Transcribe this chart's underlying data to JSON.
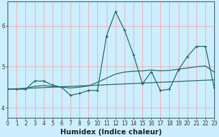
{
  "title": "",
  "xlabel": "Humidex (Indice chaleur)",
  "ylabel": "",
  "bg_color": "#cceeff",
  "grid_color": "#ff9999",
  "line_color": "#1a6b6b",
  "x_data": [
    0,
    1,
    2,
    3,
    4,
    5,
    6,
    7,
    8,
    9,
    10,
    11,
    12,
    13,
    14,
    15,
    16,
    17,
    18,
    19,
    20,
    21,
    22,
    23
  ],
  "y_main": [
    4.45,
    4.45,
    4.45,
    4.65,
    4.65,
    4.55,
    4.5,
    4.3,
    4.35,
    4.42,
    4.42,
    5.75,
    6.35,
    5.9,
    5.3,
    4.58,
    4.88,
    4.42,
    4.45,
    4.92,
    5.25,
    5.5,
    5.5,
    4.48
  ],
  "y_trend1": [
    4.45,
    4.46,
    4.47,
    4.48,
    4.49,
    4.5,
    4.51,
    4.52,
    4.53,
    4.54,
    4.55,
    4.56,
    4.57,
    4.58,
    4.59,
    4.6,
    4.61,
    4.62,
    4.63,
    4.64,
    4.65,
    4.66,
    4.67,
    4.68
  ],
  "y_trend2": [
    4.45,
    4.46,
    4.47,
    4.52,
    4.54,
    4.52,
    4.5,
    4.48,
    4.5,
    4.53,
    4.62,
    4.72,
    4.82,
    4.87,
    4.89,
    4.9,
    4.92,
    4.9,
    4.91,
    4.94,
    4.97,
    5.0,
    5.02,
    4.87
  ],
  "xlim": [
    0,
    23
  ],
  "ylim": [
    3.75,
    6.6
  ],
  "yticks": [
    4,
    5,
    6
  ],
  "xticks": [
    0,
    1,
    2,
    3,
    4,
    5,
    6,
    7,
    8,
    9,
    10,
    11,
    12,
    13,
    14,
    15,
    16,
    17,
    18,
    19,
    20,
    21,
    22,
    23
  ],
  "tick_fontsize": 5.5,
  "label_fontsize": 7.5
}
